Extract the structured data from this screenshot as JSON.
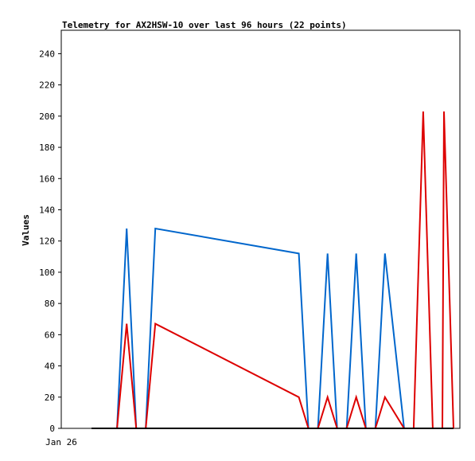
{
  "chart_data": {
    "type": "line",
    "title": "Telemetry for AX2HSW-10 over last 96 hours (22 points)",
    "xlabel": "",
    "ylabel": "Values",
    "ylim": [
      0,
      255
    ],
    "yticks": [
      0,
      20,
      40,
      60,
      80,
      100,
      120,
      140,
      160,
      180,
      200,
      220,
      240
    ],
    "xtick_labels": [
      "Jan 26"
    ],
    "grid": false,
    "series": [
      {
        "color": "#0066cc",
        "points": [
          [
            19,
            0
          ],
          [
            35,
            0
          ],
          [
            41,
            128
          ],
          [
            47,
            0
          ],
          [
            53,
            0
          ],
          [
            59,
            128
          ],
          [
            149,
            112
          ],
          [
            155,
            0
          ],
          [
            161,
            0
          ],
          [
            167,
            112
          ],
          [
            173,
            0
          ],
          [
            179,
            0
          ],
          [
            185,
            112
          ],
          [
            191,
            0
          ],
          [
            197,
            0
          ],
          [
            203,
            112
          ],
          [
            215,
            0
          ]
        ]
      },
      {
        "color": "#dd0000",
        "points": [
          [
            19,
            0
          ],
          [
            35,
            0
          ],
          [
            41,
            67
          ],
          [
            47,
            0
          ],
          [
            53,
            0
          ],
          [
            59,
            67
          ],
          [
            149,
            20
          ],
          [
            155,
            0
          ],
          [
            161,
            0
          ],
          [
            167,
            20
          ],
          [
            173,
            0
          ],
          [
            179,
            0
          ],
          [
            185,
            20
          ],
          [
            191,
            0
          ],
          [
            197,
            0
          ],
          [
            203,
            20
          ],
          [
            215,
            0
          ],
          [
            221,
            0
          ],
          [
            227,
            203
          ],
          [
            233,
            0
          ],
          [
            239,
            0
          ],
          [
            240,
            203
          ],
          [
            246,
            0
          ]
        ]
      },
      {
        "color": "#000000",
        "points": [
          [
            19,
            0
          ],
          [
            246,
            0
          ]
        ]
      }
    ]
  }
}
